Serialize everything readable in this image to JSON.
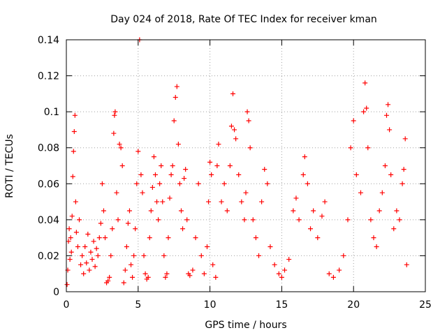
{
  "chart_data": {
    "type": "scatter",
    "title": "Day 024 of 2018, Rate Of TEC Index for receiver kman",
    "xlabel": "GPS time / hours",
    "ylabel": "ROTI / TECUs",
    "xlim": [
      0,
      25
    ],
    "ylim": [
      0,
      0.14
    ],
    "xticks": [
      0,
      5,
      10,
      15,
      20,
      25
    ],
    "xtick_labels": [
      "0",
      "5",
      "10",
      "15",
      "20",
      "25"
    ],
    "yticks": [
      0,
      0.02,
      0.04,
      0.06,
      0.08,
      0.1,
      0.12,
      0.14
    ],
    "ytick_labels": [
      "0",
      "0.02",
      "0.04",
      "0.06",
      "0.08",
      "0.1",
      "0.12",
      "0.14"
    ],
    "grid": true,
    "marker": "+",
    "colors": {
      "marker": "#ff0000",
      "grid": "#a0a0a0",
      "axis": "#000000"
    },
    "series": [
      {
        "name": "ROTI",
        "points": [
          [
            0.05,
            0.004
          ],
          [
            0.1,
            0.012
          ],
          [
            0.15,
            0.028
          ],
          [
            0.2,
            0.035
          ],
          [
            0.25,
            0.018
          ],
          [
            0.3,
            0.03
          ],
          [
            0.35,
            0.022
          ],
          [
            0.4,
            0.042
          ],
          [
            0.45,
            0.064
          ],
          [
            0.5,
            0.078
          ],
          [
            0.55,
            0.089
          ],
          [
            0.6,
            0.098
          ],
          [
            0.65,
            0.05
          ],
          [
            0.7,
            0.033
          ],
          [
            0.8,
            0.025
          ],
          [
            0.9,
            0.04
          ],
          [
            1.0,
            0.015
          ],
          [
            1.1,
            0.02
          ],
          [
            1.2,
            0.01
          ],
          [
            1.3,
            0.025
          ],
          [
            1.4,
            0.016
          ],
          [
            1.5,
            0.032
          ],
          [
            1.6,
            0.012
          ],
          [
            1.7,
            0.022
          ],
          [
            1.8,
            0.018
          ],
          [
            1.9,
            0.028
          ],
          [
            2.0,
            0.014
          ],
          [
            2.1,
            0.024
          ],
          [
            2.2,
            0.02
          ],
          [
            2.3,
            0.03
          ],
          [
            2.4,
            0.038
          ],
          [
            2.5,
            0.06
          ],
          [
            2.6,
            0.045
          ],
          [
            2.7,
            0.03
          ],
          [
            2.8,
            0.005
          ],
          [
            2.9,
            0.006
          ],
          [
            3.0,
            0.008
          ],
          [
            3.1,
            0.02
          ],
          [
            3.2,
            0.035
          ],
          [
            3.3,
            0.088
          ],
          [
            3.35,
            0.098
          ],
          [
            3.4,
            0.1
          ],
          [
            3.5,
            0.055
          ],
          [
            3.6,
            0.04
          ],
          [
            3.7,
            0.082
          ],
          [
            3.8,
            0.08
          ],
          [
            3.9,
            0.07
          ],
          [
            4.0,
            0.005
          ],
          [
            4.1,
            0.012
          ],
          [
            4.2,
            0.025
          ],
          [
            4.3,
            0.038
          ],
          [
            4.4,
            0.045
          ],
          [
            4.5,
            0.015
          ],
          [
            4.6,
            0.008
          ],
          [
            4.7,
            0.02
          ],
          [
            4.8,
            0.035
          ],
          [
            4.9,
            0.06
          ],
          [
            5.0,
            0.078
          ],
          [
            5.1,
            0.14
          ],
          [
            5.2,
            0.065
          ],
          [
            5.3,
            0.055
          ],
          [
            5.4,
            0.02
          ],
          [
            5.5,
            0.01
          ],
          [
            5.6,
            0.007
          ],
          [
            5.7,
            0.008
          ],
          [
            5.8,
            0.03
          ],
          [
            5.9,
            0.045
          ],
          [
            6.0,
            0.058
          ],
          [
            6.1,
            0.075
          ],
          [
            6.2,
            0.065
          ],
          [
            6.3,
            0.05
          ],
          [
            6.4,
            0.04
          ],
          [
            6.5,
            0.06
          ],
          [
            6.6,
            0.07
          ],
          [
            6.7,
            0.05
          ],
          [
            6.8,
            0.02
          ],
          [
            6.9,
            0.008
          ],
          [
            7.0,
            0.01
          ],
          [
            7.1,
            0.03
          ],
          [
            7.2,
            0.052
          ],
          [
            7.3,
            0.065
          ],
          [
            7.4,
            0.07
          ],
          [
            7.5,
            0.095
          ],
          [
            7.6,
            0.108
          ],
          [
            7.7,
            0.114
          ],
          [
            7.8,
            0.082
          ],
          [
            7.9,
            0.06
          ],
          [
            8.0,
            0.045
          ],
          [
            8.1,
            0.035
          ],
          [
            8.2,
            0.063
          ],
          [
            8.3,
            0.068
          ],
          [
            8.4,
            0.04
          ],
          [
            8.5,
            0.01
          ],
          [
            8.6,
            0.009
          ],
          [
            8.8,
            0.012
          ],
          [
            9.0,
            0.03
          ],
          [
            9.2,
            0.06
          ],
          [
            9.4,
            0.02
          ],
          [
            9.6,
            0.01
          ],
          [
            9.8,
            0.025
          ],
          [
            9.9,
            0.05
          ],
          [
            10.0,
            0.072
          ],
          [
            10.1,
            0.065
          ],
          [
            10.2,
            0.015
          ],
          [
            10.4,
            0.008
          ],
          [
            10.5,
            0.07
          ],
          [
            10.6,
            0.082
          ],
          [
            10.8,
            0.05
          ],
          [
            11.0,
            0.06
          ],
          [
            11.2,
            0.045
          ],
          [
            11.4,
            0.07
          ],
          [
            11.5,
            0.092
          ],
          [
            11.6,
            0.11
          ],
          [
            11.7,
            0.09
          ],
          [
            11.8,
            0.085
          ],
          [
            12.0,
            0.065
          ],
          [
            12.2,
            0.05
          ],
          [
            12.4,
            0.04
          ],
          [
            12.5,
            0.055
          ],
          [
            12.6,
            0.1
          ],
          [
            12.7,
            0.095
          ],
          [
            12.8,
            0.08
          ],
          [
            13.0,
            0.04
          ],
          [
            13.2,
            0.03
          ],
          [
            13.4,
            0.02
          ],
          [
            13.6,
            0.05
          ],
          [
            13.8,
            0.068
          ],
          [
            14.0,
            0.06
          ],
          [
            14.2,
            0.025
          ],
          [
            14.5,
            0.015
          ],
          [
            14.8,
            0.01
          ],
          [
            15.0,
            0.008
          ],
          [
            15.2,
            0.012
          ],
          [
            15.5,
            0.018
          ],
          [
            15.8,
            0.045
          ],
          [
            16.0,
            0.052
          ],
          [
            16.2,
            0.04
          ],
          [
            16.5,
            0.065
          ],
          [
            16.6,
            0.075
          ],
          [
            16.8,
            0.06
          ],
          [
            17.0,
            0.035
          ],
          [
            17.2,
            0.045
          ],
          [
            17.5,
            0.03
          ],
          [
            17.8,
            0.042
          ],
          [
            18.0,
            0.05
          ],
          [
            18.3,
            0.01
          ],
          [
            18.6,
            0.008
          ],
          [
            19.0,
            0.012
          ],
          [
            19.3,
            0.02
          ],
          [
            19.6,
            0.04
          ],
          [
            19.8,
            0.08
          ],
          [
            20.0,
            0.095
          ],
          [
            20.2,
            0.065
          ],
          [
            20.5,
            0.055
          ],
          [
            20.7,
            0.1
          ],
          [
            20.8,
            0.116
          ],
          [
            20.9,
            0.102
          ],
          [
            21.0,
            0.08
          ],
          [
            21.2,
            0.04
          ],
          [
            21.4,
            0.03
          ],
          [
            21.6,
            0.025
          ],
          [
            21.8,
            0.045
          ],
          [
            22.0,
            0.055
          ],
          [
            22.2,
            0.07
          ],
          [
            22.3,
            0.098
          ],
          [
            22.4,
            0.104
          ],
          [
            22.5,
            0.09
          ],
          [
            22.6,
            0.065
          ],
          [
            22.8,
            0.035
          ],
          [
            23.0,
            0.045
          ],
          [
            23.2,
            0.04
          ],
          [
            23.4,
            0.06
          ],
          [
            23.5,
            0.068
          ],
          [
            23.6,
            0.085
          ],
          [
            23.7,
            0.015
          ]
        ]
      }
    ]
  }
}
